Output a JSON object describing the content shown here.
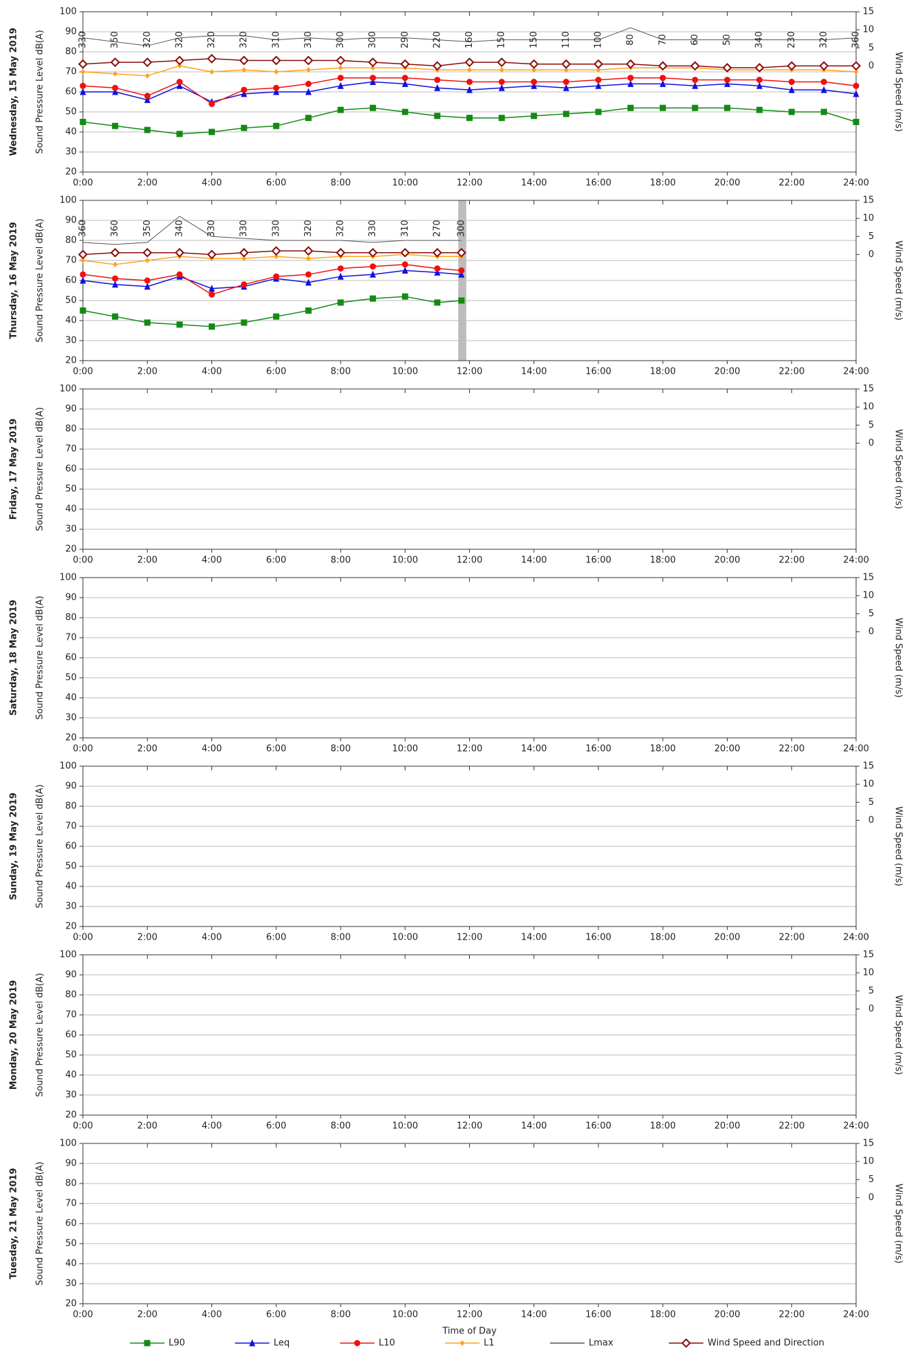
{
  "chart_data": [
    {
      "type": "line",
      "title": "Wednesday, 15 May 2019",
      "y_label": "Sound Pressure Level dB(A)",
      "y2_label": "Wind Speed (m/s)",
      "xlim": [
        0,
        24
      ],
      "xticks": [
        {
          "value": 0,
          "label": "0:00"
        },
        {
          "value": 2,
          "label": "2:00"
        },
        {
          "value": 4,
          "label": "4:00"
        },
        {
          "value": 6,
          "label": "6:00"
        },
        {
          "value": 8,
          "label": "8:00"
        },
        {
          "value": 10,
          "label": "10:00"
        },
        {
          "value": 12,
          "label": "12:00"
        },
        {
          "value": 14,
          "label": "14:00"
        },
        {
          "value": 16,
          "label": "16:00"
        },
        {
          "value": 18,
          "label": "18:00"
        },
        {
          "value": 20,
          "label": "20:00"
        },
        {
          "value": 22,
          "label": "22:00"
        },
        {
          "value": 24,
          "label": "24:00"
        }
      ],
      "ylim": [
        20,
        100
      ],
      "yticks": [
        20,
        30,
        40,
        50,
        60,
        70,
        80,
        90,
        100
      ],
      "y2lim": [
        -29.4,
        15
      ],
      "y2ticks": [
        0,
        5,
        10,
        15
      ],
      "grid": true,
      "x": [
        0,
        1,
        2,
        3,
        4,
        5,
        6,
        7,
        8,
        9,
        10,
        11,
        12,
        13,
        14,
        15,
        16,
        17,
        18,
        19,
        20,
        21,
        22,
        23,
        24
      ],
      "series": [
        {
          "name": "L90",
          "color": "#138a13",
          "marker": "square",
          "values": [
            45,
            43,
            41,
            39,
            40,
            42,
            43,
            47,
            51,
            52,
            50,
            48,
            47,
            47,
            48,
            49,
            50,
            52,
            52,
            52,
            52,
            51,
            50,
            50,
            45
          ]
        },
        {
          "name": "Leq",
          "color": "#1010e0",
          "marker": "triangle",
          "values": [
            60,
            60,
            56,
            63,
            55,
            59,
            60,
            60,
            63,
            65,
            64,
            62,
            61,
            62,
            63,
            62,
            63,
            64,
            64,
            63,
            64,
            63,
            61,
            61,
            59
          ]
        },
        {
          "name": "L10",
          "color": "#f01010",
          "marker": "circle",
          "values": [
            63,
            62,
            58,
            65,
            54,
            61,
            62,
            64,
            67,
            67,
            67,
            66,
            65,
            65,
            65,
            65,
            66,
            67,
            67,
            66,
            66,
            66,
            65,
            65,
            63
          ]
        },
        {
          "name": "L1",
          "color": "#ffa31a",
          "marker": "diamond",
          "values": [
            70,
            69,
            68,
            73,
            70,
            71,
            70,
            71,
            72,
            72,
            72,
            71,
            71,
            71,
            71,
            71,
            71,
            72,
            72,
            72,
            71,
            71,
            71,
            71,
            70
          ]
        },
        {
          "name": "Lmax",
          "color": "#555555",
          "marker": "none",
          "values": [
            87,
            85,
            83,
            87,
            88,
            88,
            86,
            87,
            86,
            87,
            87,
            86,
            85,
            86,
            86,
            86,
            86,
            92,
            86,
            86,
            86,
            86,
            86,
            86,
            87
          ]
        },
        {
          "name": "Wind Speed and Direction",
          "color": "#8b0a0a",
          "marker": "open-diamond",
          "axis": "y2",
          "values": [
            0.5,
            1,
            1,
            1.5,
            2,
            1.5,
            1.5,
            1.5,
            1.5,
            1,
            0.5,
            0,
            1,
            1,
            0.5,
            0.5,
            0.5,
            0.5,
            0,
            0,
            -0.5,
            -0.5,
            0,
            0,
            0
          ],
          "directions": [
            330,
            350,
            320,
            320,
            320,
            320,
            310,
            310,
            300,
            300,
            290,
            220,
            160,
            150,
            150,
            110,
            100,
            80,
            70,
            60,
            50,
            340,
            230,
            320,
            360
          ]
        }
      ]
    },
    {
      "type": "line",
      "title": "Thursday, 16 May 2019",
      "y_label": "Sound Pressure Level dB(A)",
      "y2_label": "Wind Speed (m/s)",
      "xlim": [
        0,
        24
      ],
      "xticks": [
        {
          "value": 0,
          "label": "0:00"
        },
        {
          "value": 2,
          "label": "2:00"
        },
        {
          "value": 4,
          "label": "4:00"
        },
        {
          "value": 6,
          "label": "6:00"
        },
        {
          "value": 8,
          "label": "8:00"
        },
        {
          "value": 10,
          "label": "10:00"
        },
        {
          "value": 12,
          "label": "12:00"
        },
        {
          "value": 14,
          "label": "14:00"
        },
        {
          "value": 16,
          "label": "16:00"
        },
        {
          "value": 18,
          "label": "18:00"
        },
        {
          "value": 20,
          "label": "20:00"
        },
        {
          "value": 22,
          "label": "22:00"
        },
        {
          "value": 24,
          "label": "24:00"
        }
      ],
      "ylim": [
        20,
        100
      ],
      "yticks": [
        20,
        30,
        40,
        50,
        60,
        70,
        80,
        90,
        100
      ],
      "y2lim": [
        -29.4,
        15
      ],
      "y2ticks": [
        0,
        5,
        10,
        15
      ],
      "grid": true,
      "shaded_x": [
        11.65,
        11.9
      ],
      "x": [
        0,
        1,
        2,
        3,
        4,
        5,
        6,
        7,
        8,
        9,
        10,
        11,
        11.75
      ],
      "series": [
        {
          "name": "L90",
          "color": "#138a13",
          "marker": "square",
          "values": [
            45,
            42,
            39,
            38,
            37,
            39,
            42,
            45,
            49,
            51,
            52,
            49,
            50
          ]
        },
        {
          "name": "Leq",
          "color": "#1010e0",
          "marker": "triangle",
          "values": [
            60,
            58,
            57,
            62,
            56,
            57,
            61,
            59,
            62,
            63,
            65,
            64,
            63
          ]
        },
        {
          "name": "L10",
          "color": "#f01010",
          "marker": "circle",
          "values": [
            63,
            61,
            60,
            63,
            53,
            58,
            62,
            63,
            66,
            67,
            68,
            66,
            65
          ]
        },
        {
          "name": "L1",
          "color": "#ffa31a",
          "marker": "diamond",
          "values": [
            70,
            68,
            70,
            72,
            71,
            71,
            72,
            71,
            72,
            72,
            73,
            72,
            72
          ]
        },
        {
          "name": "Lmax",
          "color": "#555555",
          "marker": "none",
          "values": [
            79,
            78,
            79,
            92,
            82,
            81,
            80,
            80,
            80,
            79,
            80,
            80,
            80
          ]
        },
        {
          "name": "Wind Speed and Direction",
          "color": "#8b0a0a",
          "marker": "open-diamond",
          "axis": "y2",
          "values": [
            0,
            0.5,
            0.5,
            0.5,
            0,
            0.5,
            1,
            1,
            0.5,
            0.5,
            0.5,
            0.5,
            0.5
          ],
          "directions": [
            360,
            360,
            350,
            340,
            330,
            330,
            330,
            320,
            320,
            330,
            310,
            270,
            300
          ]
        }
      ]
    },
    {
      "type": "line",
      "title": "Friday, 17 May 2019",
      "y_label": "Sound Pressure Level dB(A)",
      "y2_label": "Wind Speed (m/s)",
      "xlim": [
        0,
        24
      ],
      "xticks": [
        {
          "value": 0,
          "label": "0:00"
        },
        {
          "value": 2,
          "label": "2:00"
        },
        {
          "value": 4,
          "label": "4:00"
        },
        {
          "value": 6,
          "label": "6:00"
        },
        {
          "value": 8,
          "label": "8:00"
        },
        {
          "value": 10,
          "label": "10:00"
        },
        {
          "value": 12,
          "label": "12:00"
        },
        {
          "value": 14,
          "label": "14:00"
        },
        {
          "value": 16,
          "label": "16:00"
        },
        {
          "value": 18,
          "label": "18:00"
        },
        {
          "value": 20,
          "label": "20:00"
        },
        {
          "value": 22,
          "label": "22:00"
        },
        {
          "value": 24,
          "label": "24:00"
        }
      ],
      "ylim": [
        20,
        100
      ],
      "yticks": [
        20,
        30,
        40,
        50,
        60,
        70,
        80,
        90,
        100
      ],
      "y2lim": [
        -29.4,
        15
      ],
      "y2ticks": [
        0,
        5,
        10,
        15
      ],
      "grid": true
    },
    {
      "type": "line",
      "title": "Saturday, 18 May 2019",
      "y_label": "Sound Pressure Level dB(A)",
      "y2_label": "Wind Speed (m/s)",
      "xlim": [
        0,
        24
      ],
      "xticks": [
        {
          "value": 0,
          "label": "0:00"
        },
        {
          "value": 2,
          "label": "2:00"
        },
        {
          "value": 4,
          "label": "4:00"
        },
        {
          "value": 6,
          "label": "6:00"
        },
        {
          "value": 8,
          "label": "8:00"
        },
        {
          "value": 10,
          "label": "10:00"
        },
        {
          "value": 12,
          "label": "12:00"
        },
        {
          "value": 14,
          "label": "14:00"
        },
        {
          "value": 16,
          "label": "16:00"
        },
        {
          "value": 18,
          "label": "18:00"
        },
        {
          "value": 20,
          "label": "20:00"
        },
        {
          "value": 22,
          "label": "22:00"
        },
        {
          "value": 24,
          "label": "24:00"
        }
      ],
      "ylim": [
        20,
        100
      ],
      "yticks": [
        20,
        30,
        40,
        50,
        60,
        70,
        80,
        90,
        100
      ],
      "y2lim": [
        -29.4,
        15
      ],
      "y2ticks": [
        0,
        5,
        10,
        15
      ],
      "grid": true
    },
    {
      "type": "line",
      "title": "Sunday, 19 May 2019",
      "y_label": "Sound Pressure Level dB(A)",
      "y2_label": "Wind Speed (m/s)",
      "xlim": [
        0,
        24
      ],
      "xticks": [
        {
          "value": 0,
          "label": "0:00"
        },
        {
          "value": 2,
          "label": "2:00"
        },
        {
          "value": 4,
          "label": "4:00"
        },
        {
          "value": 6,
          "label": "6:00"
        },
        {
          "value": 8,
          "label": "8:00"
        },
        {
          "value": 10,
          "label": "10:00"
        },
        {
          "value": 12,
          "label": "12:00"
        },
        {
          "value": 14,
          "label": "14:00"
        },
        {
          "value": 16,
          "label": "16:00"
        },
        {
          "value": 18,
          "label": "18:00"
        },
        {
          "value": 20,
          "label": "20:00"
        },
        {
          "value": 22,
          "label": "22:00"
        },
        {
          "value": 24,
          "label": "24:00"
        }
      ],
      "ylim": [
        20,
        100
      ],
      "yticks": [
        20,
        30,
        40,
        50,
        60,
        70,
        80,
        90,
        100
      ],
      "y2lim": [
        -29.4,
        15
      ],
      "y2ticks": [
        0,
        5,
        10,
        15
      ],
      "grid": true
    },
    {
      "type": "line",
      "title": "Monday, 20 May 2019",
      "y_label": "Sound Pressure Level dB(A)",
      "y2_label": "Wind Speed (m/s)",
      "xlim": [
        0,
        24
      ],
      "xticks": [
        {
          "value": 0,
          "label": "0:00"
        },
        {
          "value": 2,
          "label": "2:00"
        },
        {
          "value": 4,
          "label": "4:00"
        },
        {
          "value": 6,
          "label": "6:00"
        },
        {
          "value": 8,
          "label": "8:00"
        },
        {
          "value": 10,
          "label": "10:00"
        },
        {
          "value": 12,
          "label": "12:00"
        },
        {
          "value": 14,
          "label": "14:00"
        },
        {
          "value": 16,
          "label": "16:00"
        },
        {
          "value": 18,
          "label": "18:00"
        },
        {
          "value": 20,
          "label": "20:00"
        },
        {
          "value": 22,
          "label": "22:00"
        },
        {
          "value": 24,
          "label": "24:00"
        }
      ],
      "ylim": [
        20,
        100
      ],
      "yticks": [
        20,
        30,
        40,
        50,
        60,
        70,
        80,
        90,
        100
      ],
      "y2lim": [
        -29.4,
        15
      ],
      "y2ticks": [
        0,
        5,
        10,
        15
      ],
      "grid": true
    },
    {
      "type": "line",
      "title": "Tuesday, 21 May 2019",
      "y_label": "Sound Pressure Level dB(A)",
      "y2_label": "Wind Speed (m/s)",
      "x_label": "Time of Day",
      "xlim": [
        0,
        24
      ],
      "xticks": [
        {
          "value": 0,
          "label": "0:00"
        },
        {
          "value": 2,
          "label": "2:00"
        },
        {
          "value": 4,
          "label": "4:00"
        },
        {
          "value": 6,
          "label": "6:00"
        },
        {
          "value": 8,
          "label": "8:00"
        },
        {
          "value": 10,
          "label": "10:00"
        },
        {
          "value": 12,
          "label": "12:00"
        },
        {
          "value": 14,
          "label": "14:00"
        },
        {
          "value": 16,
          "label": "16:00"
        },
        {
          "value": 18,
          "label": "18:00"
        },
        {
          "value": 20,
          "label": "20:00"
        },
        {
          "value": 22,
          "label": "22:00"
        },
        {
          "value": 24,
          "label": "24:00"
        }
      ],
      "ylim": [
        20,
        100
      ],
      "yticks": [
        20,
        30,
        40,
        50,
        60,
        70,
        80,
        90,
        100
      ],
      "y2lim": [
        -29.4,
        15
      ],
      "y2ticks": [
        0,
        5,
        10,
        15
      ],
      "grid": true
    }
  ]
}
